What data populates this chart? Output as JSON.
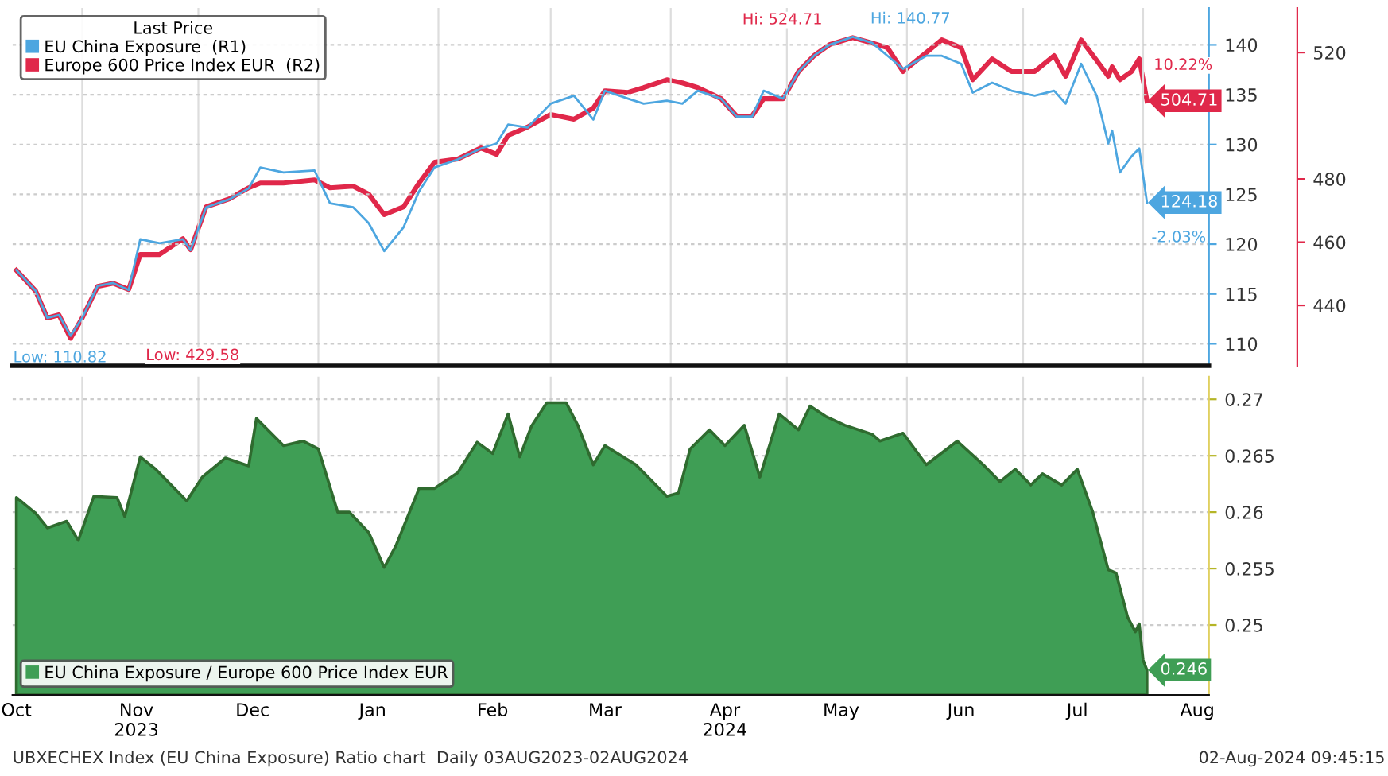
{
  "chart_data": [
    {
      "type": "line",
      "legend": "top left",
      "legend_title": "Last Price",
      "grid": true,
      "tick_labels": "y",
      "x": [
        "2023-10-15",
        "2023-10-20",
        "2023-10-23",
        "2023-10-26",
        "2023-10-29",
        "2023-11-01",
        "2023-11-05",
        "2023-11-09",
        "2023-11-13",
        "2023-11-16",
        "2023-11-21",
        "2023-11-27",
        "2023-11-29",
        "2023-12-03",
        "2023-12-09",
        "2023-12-14",
        "2023-12-17",
        "2023-12-23",
        "2023-12-31",
        "2024-01-04",
        "2024-01-10",
        "2024-01-14",
        "2024-01-18",
        "2024-01-23",
        "2024-01-27",
        "2024-01-31",
        "2024-02-06",
        "2024-02-12",
        "2024-02-16",
        "2024-02-19",
        "2024-02-24",
        "2024-03-01",
        "2024-03-07",
        "2024-03-12",
        "2024-03-15",
        "2024-03-21",
        "2024-03-25",
        "2024-03-31",
        "2024-04-04",
        "2024-04-08",
        "2024-04-14",
        "2024-04-18",
        "2024-04-22",
        "2024-04-25",
        "2024-04-30",
        "2024-05-04",
        "2024-05-08",
        "2024-05-12",
        "2024-05-18",
        "2024-05-23",
        "2024-05-27",
        "2024-05-31",
        "2024-06-06",
        "2024-06-10",
        "2024-06-15",
        "2024-06-18",
        "2024-06-23",
        "2024-06-28",
        "2024-07-04",
        "2024-07-09",
        "2024-07-12",
        "2024-07-16",
        "2024-07-20",
        "2024-07-23",
        "2024-07-24",
        "2024-07-26",
        "2024-07-29",
        "2024-07-31",
        "2024-08-02"
      ],
      "xlim": [
        "2023-10-14",
        "2024-08-18"
      ],
      "xticks": [
        {
          "value": "2023-11-01",
          "label": null
        },
        {
          "value": "2023-12-01",
          "label": null
        },
        {
          "value": "2024-01-01",
          "label": null
        },
        {
          "value": "2024-02-01",
          "label": null
        },
        {
          "value": "2024-03-01",
          "label": null
        },
        {
          "value": "2024-04-01",
          "label": null
        },
        {
          "value": "2024-05-01",
          "label": null
        },
        {
          "value": "2024-06-01",
          "label": null
        },
        {
          "value": "2024-07-01",
          "label": null
        },
        {
          "value": "2024-08-01",
          "label": null
        }
      ],
      "ylim": [
        107.8,
        143.7
      ],
      "yticks": [
        110,
        115,
        120,
        125,
        130,
        135,
        140
      ],
      "y2lim": [
        420.9,
        534.1
      ],
      "y2ticks": [
        440,
        460,
        480,
        520
      ],
      "series": [
        {
          "name": "EU China Exposure  (R1)",
          "color": "#4da6e0",
          "values": [
            117.4,
            115.3,
            112.6,
            112.9,
            110.8,
            112.6,
            115.8,
            116.1,
            115.4,
            120.5,
            120.1,
            120.5,
            119.4,
            123.7,
            124.5,
            125.6,
            127.7,
            127.2,
            127.4,
            124.1,
            123.7,
            122.1,
            119.3,
            121.7,
            125.3,
            127.7,
            128.5,
            129.6,
            130.1,
            132.0,
            131.7,
            134.1,
            134.9,
            132.5,
            135.4,
            134.6,
            134.1,
            134.4,
            134.1,
            135.4,
            134.6,
            132.8,
            132.8,
            135.4,
            134.6,
            137.3,
            138.9,
            140.0,
            140.8,
            140.2,
            138.9,
            137.6,
            138.9,
            138.9,
            138.1,
            135.2,
            136.2,
            135.4,
            134.9,
            135.4,
            134.1,
            138.1,
            134.9,
            130.1,
            131.4,
            127.2,
            128.8,
            129.6,
            124.18
          ],
          "value_labels": [
            null,
            null,
            null,
            null,
            null,
            null,
            null,
            null,
            null,
            null,
            null,
            null,
            null,
            null,
            null,
            null,
            null,
            null,
            null,
            null,
            null,
            null,
            null,
            null,
            null,
            null,
            null,
            null,
            null,
            null,
            null,
            null,
            null,
            null,
            null,
            null,
            null,
            null,
            null,
            null,
            null,
            null,
            null,
            null,
            null,
            null,
            null,
            null,
            null,
            null,
            null,
            null,
            null,
            null,
            null,
            null,
            null,
            null,
            null,
            null,
            null,
            null,
            null,
            null,
            null,
            null,
            null,
            null,
            "124.18"
          ]
        },
        {
          "name": "Europe 600 Price Index EUR  (R2)",
          "color": "#e0284a",
          "axis": "y2",
          "values": [
            451.1,
            444.5,
            436.0,
            437.0,
            429.6,
            436.0,
            446.0,
            447.0,
            445.0,
            456.1,
            456.1,
            461.1,
            457.6,
            471.2,
            473.7,
            477.2,
            478.7,
            478.7,
            479.7,
            477.2,
            477.7,
            475.2,
            468.7,
            471.2,
            478.7,
            485.3,
            486.3,
            489.8,
            487.8,
            493.8,
            496.4,
            500.4,
            498.9,
            502.4,
            507.9,
            507.4,
            508.9,
            511.4,
            510.4,
            508.9,
            505.4,
            499.9,
            499.9,
            505.4,
            505.4,
            514.0,
            519.0,
            522.5,
            524.7,
            523.0,
            521.5,
            514.0,
            520.0,
            524.0,
            521.5,
            511.4,
            518.0,
            514.0,
            514.0,
            519.0,
            512.5,
            524.0,
            517.5,
            512.5,
            515.5,
            511.4,
            514.0,
            518.0,
            504.71
          ],
          "value_labels": [
            null,
            null,
            null,
            null,
            null,
            null,
            null,
            null,
            null,
            null,
            null,
            null,
            null,
            null,
            null,
            null,
            null,
            null,
            null,
            null,
            null,
            null,
            null,
            null,
            null,
            null,
            null,
            null,
            null,
            null,
            null,
            null,
            null,
            null,
            null,
            null,
            null,
            null,
            null,
            null,
            null,
            null,
            null,
            null,
            null,
            null,
            null,
            null,
            null,
            null,
            null,
            null,
            null,
            null,
            null,
            null,
            null,
            null,
            null,
            null,
            null,
            null,
            null,
            null,
            null,
            null,
            null,
            null,
            "504.71"
          ]
        }
      ],
      "annotations": [
        {
          "text": "Low: 110.82",
          "x": "2023-10-29",
          "y": 110.8
        },
        "Low: 429.58",
        "Hi: 524.71",
        {
          "text": "Hi: 140.77",
          "x": "2024-05-18",
          "y": 140.8
        },
        "10.22%",
        {
          "text": "-2.03%",
          "x": "2024-08-02",
          "y": 124.18
        }
      ]
    },
    {
      "type": "area",
      "legend": "bottom left",
      "grid": true,
      "xlim": [
        "2023-10-14",
        "2024-08-18"
      ],
      "xticks": [
        {
          "value": "2023-10-15",
          "label": "Oct"
        },
        {
          "value": "2023-11-01",
          "label": null
        },
        {
          "value": "2023-11-15",
          "label": "Nov\n2023"
        },
        {
          "value": "2023-12-01",
          "label": null
        },
        {
          "value": "2023-12-15",
          "label": "Dec"
        },
        {
          "value": "2024-01-01",
          "label": null
        },
        {
          "value": "2024-01-15",
          "label": "Jan"
        },
        {
          "value": "2024-02-01",
          "label": null
        },
        {
          "value": "2024-02-15",
          "label": "Feb"
        },
        {
          "value": "2024-03-01",
          "label": null
        },
        {
          "value": "2024-03-15",
          "label": "Mar"
        },
        {
          "value": "2024-04-01",
          "label": null
        },
        {
          "value": "2024-04-15",
          "label": "Apr\n2024"
        },
        {
          "value": "2024-05-01",
          "label": null
        },
        {
          "value": "2024-05-15",
          "label": "May"
        },
        {
          "value": "2024-06-01",
          "label": null
        },
        {
          "value": "2024-06-15",
          "label": "Jun"
        },
        {
          "value": "2024-07-01",
          "label": null
        },
        {
          "value": "2024-07-15",
          "label": "Jul"
        },
        {
          "value": "2024-08-01",
          "label": null
        },
        {
          "value": "2024-08-15",
          "label": "Aug"
        }
      ],
      "ylim": [
        0.2438,
        0.272
      ],
      "yticks": [
        0.25,
        0.255,
        0.26,
        0.265,
        0.27
      ],
      "series": [
        {
          "name": "EU China Exposure / Europe 600 Price Index EUR",
          "color": "#3f9e55",
          "x": [
            "2023-10-15",
            "2023-10-20",
            "2023-10-23",
            "2023-10-28",
            "2023-10-31",
            "2023-11-04",
            "2023-11-10",
            "2023-11-12",
            "2023-11-16",
            "2023-11-20",
            "2023-11-28",
            "2023-12-02",
            "2023-12-08",
            "2023-12-14",
            "2023-12-16",
            "2023-12-23",
            "2023-12-28",
            "2024-01-01",
            "2024-01-06",
            "2024-01-09",
            "2024-01-14",
            "2024-01-18",
            "2024-01-21",
            "2024-01-27",
            "2024-01-31",
            "2024-02-06",
            "2024-02-11",
            "2024-02-15",
            "2024-02-19",
            "2024-02-22",
            "2024-02-25",
            "2024-02-29",
            "2024-03-05",
            "2024-03-08",
            "2024-03-12",
            "2024-03-15",
            "2024-03-23",
            "2024-03-31",
            "2024-04-03",
            "2024-04-06",
            "2024-04-11",
            "2024-04-15",
            "2024-04-20",
            "2024-04-24",
            "2024-04-29",
            "2024-05-04",
            "2024-05-07",
            "2024-05-11",
            "2024-05-16",
            "2024-05-23",
            "2024-05-25",
            "2024-05-31",
            "2024-06-06",
            "2024-06-14",
            "2024-06-21",
            "2024-06-25",
            "2024-06-29",
            "2024-07-03",
            "2024-07-06",
            "2024-07-11",
            "2024-07-15",
            "2024-07-19",
            "2024-07-23",
            "2024-07-25",
            "2024-07-28",
            "2024-07-30",
            "2024-07-31",
            "2024-08-01",
            "2024-08-02"
          ],
          "values": [
            0.2613,
            0.2599,
            0.2586,
            0.2592,
            0.2575,
            0.2614,
            0.2613,
            0.2596,
            0.2649,
            0.2638,
            0.261,
            0.2631,
            0.2648,
            0.2641,
            0.2683,
            0.2659,
            0.2663,
            0.2656,
            0.26,
            0.26,
            0.2582,
            0.2551,
            0.257,
            0.2621,
            0.2621,
            0.2635,
            0.2662,
            0.2652,
            0.2687,
            0.2649,
            0.2676,
            0.2697,
            0.2697,
            0.2677,
            0.2642,
            0.2659,
            0.2642,
            0.2614,
            0.2617,
            0.2656,
            0.2673,
            0.2659,
            0.2677,
            0.2631,
            0.2687,
            0.2673,
            0.2694,
            0.2685,
            0.2677,
            0.2669,
            0.2663,
            0.267,
            0.2642,
            0.2663,
            0.2641,
            0.2627,
            0.2638,
            0.2624,
            0.2634,
            0.2624,
            0.2638,
            0.26,
            0.2549,
            0.2546,
            0.2507,
            0.2494,
            0.2501,
            0.2469,
            0.246
          ],
          "value_labels": [
            null,
            null,
            null,
            null,
            null,
            null,
            null,
            null,
            null,
            null,
            null,
            null,
            null,
            null,
            null,
            null,
            null,
            null,
            null,
            null,
            null,
            null,
            null,
            null,
            null,
            null,
            null,
            null,
            null,
            null,
            null,
            null,
            null,
            null,
            null,
            null,
            null,
            null,
            null,
            null,
            null,
            null,
            null,
            null,
            null,
            null,
            null,
            null,
            null,
            null,
            null,
            null,
            null,
            null,
            null,
            null,
            null,
            null,
            null,
            null,
            null,
            null,
            null,
            null,
            null,
            null,
            null,
            null,
            "0.246"
          ]
        }
      ],
      "annotations": [
        "UBXECHEX Index (EU China Exposure) Ratio chart  Daily 03AUG2023-02AUG2024",
        "02-Aug-2024 09:45:15"
      ]
    }
  ]
}
